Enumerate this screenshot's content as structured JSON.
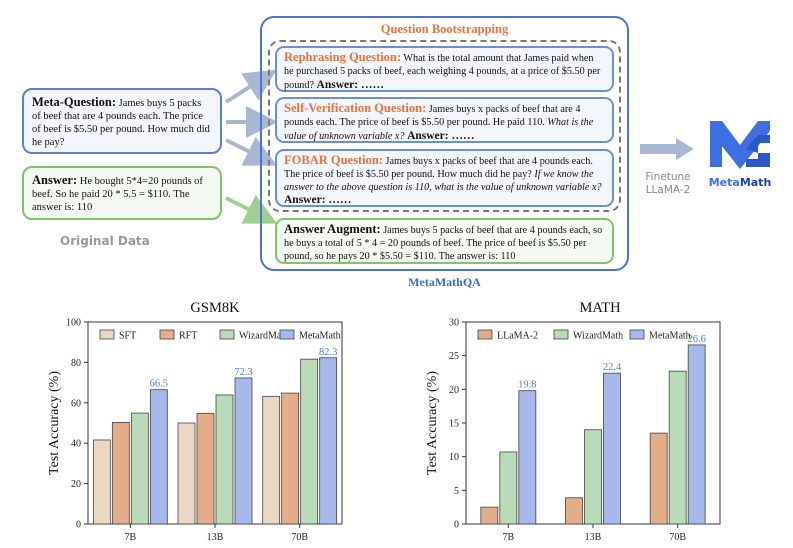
{
  "diagram": {
    "meta_question": {
      "label": "Meta-Question:",
      "text": "James buys 5 packs of beef that are 4 pounds each. The price of beef is $5.50 per pound. How much did he pay?"
    },
    "original_answer": {
      "label": "Answer:",
      "text": "He bought 5*4=20 pounds of beef. So he paid 20 * 5.5 = $110. The answer is: 110"
    },
    "original_data_label": "Original Data",
    "panel_title": "Question Bootstrapping",
    "rephrasing": {
      "label": "Rephrasing Question:",
      "text": "What is the total amount that James paid when he purchased 5 packs of beef, each weighing 4 pounds, at a price of $5.50 per pound?",
      "answer": "Answer: ……"
    },
    "self_verification": {
      "label": "Self-Verification Question:",
      "text": "James buys x packs of beef that are 4 pounds each. The price of beef is $5.50 per pound. He paid 110.",
      "italic": "What is the value of unknown variable x?",
      "answer": "Answer: ……"
    },
    "fobar": {
      "label": "FOBAR Question:",
      "text": "James buys x packs of beef that are 4 pounds each. The price of beef is $5.50 per pound. How much did he pay?",
      "italic": "If we know the answer to the above question is 110, what is the value of unknown variable x?",
      "answer": "Answer: ……"
    },
    "answer_augment": {
      "label": "Answer Augment:",
      "text": "James buys 5 packs of beef that are 4 pounds each, so he buys a total of 5 * 4 = 20 pounds of beef. The price of beef is $5.50 per pound, so he pays 20 * $5.50 = $110. The answer is: 110"
    },
    "panel_caption": "MetaMathQA",
    "finetune_line1": "Finetune",
    "finetune_line2": "LLaMA-2",
    "logo_meta": "Meta",
    "logo_math": "Math",
    "colors": {
      "blue": "#4d74d4",
      "orange": "#e8743b",
      "green": "#7fc46a",
      "gray_arrow": "#a9b8d2"
    }
  },
  "chart_data": [
    {
      "type": "bar",
      "title": "GSM8K",
      "ylabel": "Test Accuracy (%)",
      "categories": [
        "7B",
        "13B",
        "70B"
      ],
      "ylim": [
        0,
        100
      ],
      "yticks": [
        0,
        20,
        40,
        60,
        80,
        100
      ],
      "legend_position": "top",
      "series": [
        {
          "name": "SFT",
          "values": [
            41.6,
            50.0,
            63.2
          ],
          "color": "#ead8c3"
        },
        {
          "name": "RFT",
          "values": [
            50.3,
            54.8,
            64.8
          ],
          "color": "#e3ad8a"
        },
        {
          "name": "WizardMath",
          "values": [
            54.9,
            63.9,
            81.6
          ],
          "color": "#b9dbb8"
        },
        {
          "name": "MetaMath",
          "values": [
            66.5,
            72.3,
            82.3
          ],
          "color": "#a6b8ec"
        }
      ],
      "data_labels_series": "MetaMath",
      "data_labels": [
        "66.5",
        "72.3",
        "82.3"
      ]
    },
    {
      "type": "bar",
      "title": "MATH",
      "ylabel": "Test Accuracy (%)",
      "categories": [
        "7B",
        "13B",
        "70B"
      ],
      "ylim": [
        0,
        30
      ],
      "yticks": [
        0,
        5,
        10,
        15,
        20,
        25,
        30
      ],
      "legend_position": "top",
      "series": [
        {
          "name": "LLaMA-2",
          "values": [
            2.5,
            3.9,
            13.5
          ],
          "color": "#e3ad8a"
        },
        {
          "name": "WizardMath",
          "values": [
            10.7,
            14.0,
            22.7
          ],
          "color": "#b9dbb8"
        },
        {
          "name": "MetaMath",
          "values": [
            19.8,
            22.4,
            26.6
          ],
          "color": "#a6b8ec"
        }
      ],
      "data_labels_series": "MetaMath",
      "data_labels": [
        "19.8",
        "22.4",
        "26.6"
      ]
    }
  ]
}
